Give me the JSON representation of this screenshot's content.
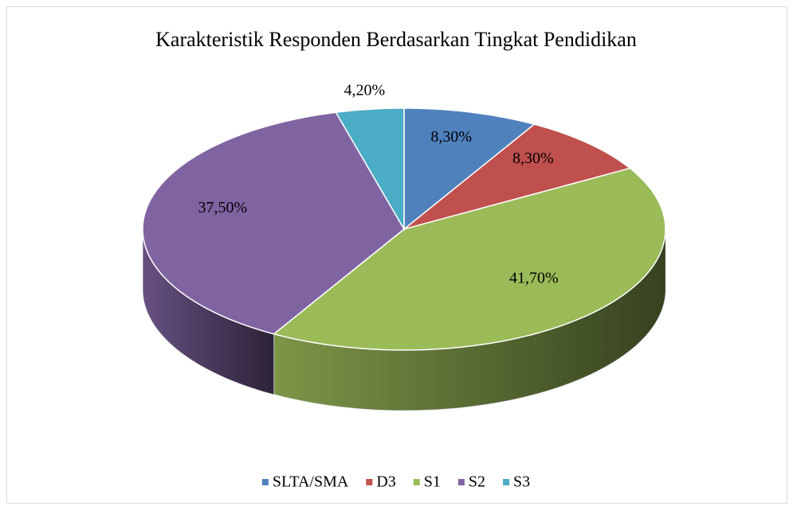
{
  "chart_data": {
    "type": "pie",
    "title": "Karakteristik Responden Berdasarkan Tingkat Pendidikan",
    "categories": [
      "SLTA/SMA",
      "D3",
      "S1",
      "S2",
      "S3"
    ],
    "values": [
      8.3,
      8.3,
      41.7,
      37.5,
      4.2
    ],
    "value_labels": [
      "8,30%",
      "8,30%",
      "41,70%",
      "37,50%",
      "4,20%"
    ],
    "colors": [
      "#4f81bd",
      "#c0504d",
      "#9bbb59",
      "#8064a2",
      "#4bacc6"
    ],
    "legend": "bottom"
  }
}
